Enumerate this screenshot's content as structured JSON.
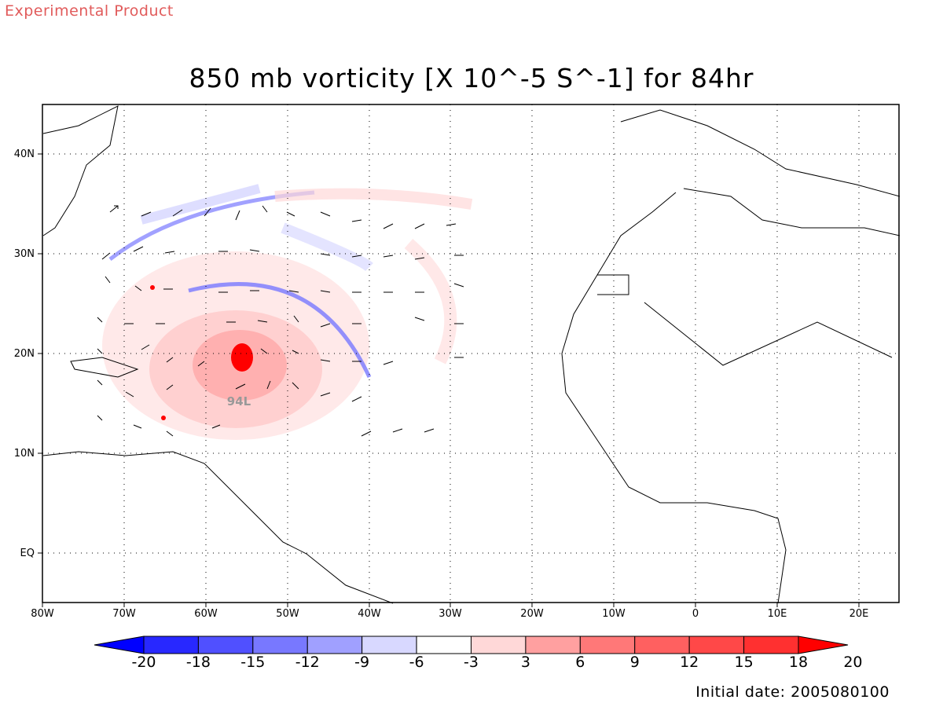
{
  "banner": "Experimental Product",
  "title": "850 mb vorticity [X 10^-5 S^-1] for 84hr",
  "footer": "Initial date: 2005080100",
  "storm_label": "94L",
  "map": {
    "lon_range": [
      -80,
      25
    ],
    "lat_range": [
      -5,
      45
    ],
    "lat_ticks": [
      {
        "value": 40,
        "label": "40N"
      },
      {
        "value": 30,
        "label": "30N"
      },
      {
        "value": 20,
        "label": "20N"
      },
      {
        "value": 10,
        "label": "10N"
      },
      {
        "value": 0,
        "label": "EQ"
      }
    ],
    "lon_ticks": [
      {
        "value": -80,
        "label": "80W"
      },
      {
        "value": -70,
        "label": "70W"
      },
      {
        "value": -60,
        "label": "60W"
      },
      {
        "value": -50,
        "label": "50W"
      },
      {
        "value": -40,
        "label": "40W"
      },
      {
        "value": -30,
        "label": "30W"
      },
      {
        "value": -20,
        "label": "20W"
      },
      {
        "value": -10,
        "label": "10W"
      },
      {
        "value": 0,
        "label": "0"
      },
      {
        "value": 10,
        "label": "10E"
      },
      {
        "value": 20,
        "label": "20E"
      }
    ],
    "grid": "dotted"
  },
  "colorbar": {
    "labels": [
      "-20",
      "-18",
      "-15",
      "-12",
      "-9",
      "-6",
      "-3",
      "3",
      "6",
      "9",
      "12",
      "15",
      "18",
      "20"
    ],
    "colors": [
      "#0000ff",
      "#2828ff",
      "#5050ff",
      "#7878ff",
      "#a0a0ff",
      "#d8d8ff",
      "#ffffff",
      "#ffd8d8",
      "#ffa0a0",
      "#ff7878",
      "#ff6060",
      "#ff4848",
      "#ff3030",
      "#ff0000"
    ]
  }
}
